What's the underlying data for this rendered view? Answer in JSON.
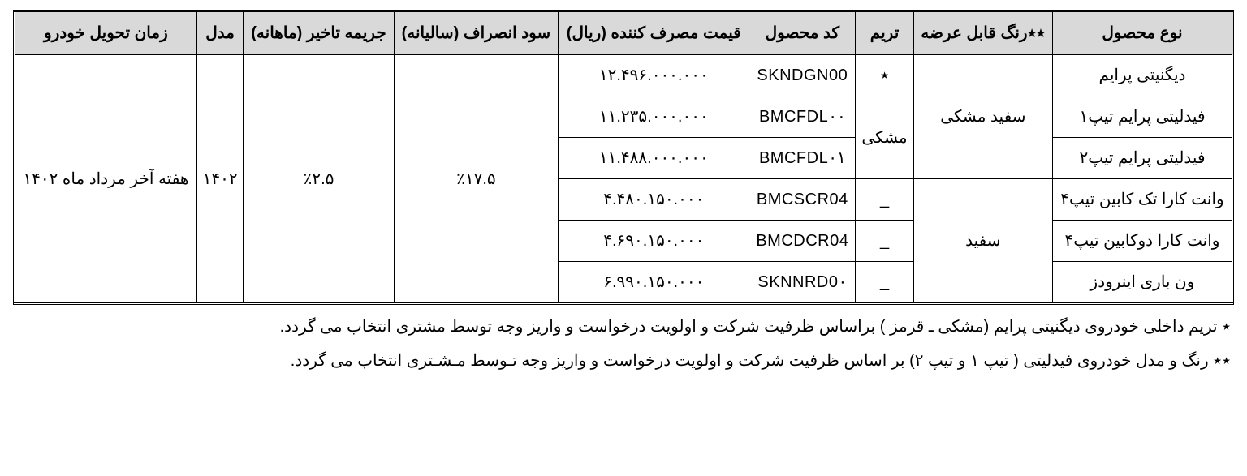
{
  "headers": {
    "product_type": "نوع محصول",
    "available_color": "٭٭رنگ قابل عرضه",
    "trim": "تریم",
    "product_code": "کد محصول",
    "consumer_price": "قیمت مصرف کننده (ریال)",
    "cancellation_interest": "سود انصراف (سالیانه)",
    "delay_penalty": "جریمه تاخیر (ماهانه)",
    "model": "مدل",
    "delivery_time": "زمان تحویل خودرو"
  },
  "shared": {
    "cancellation_interest": "٪۱۷.۵",
    "delay_penalty": "٪۲.۵",
    "model": "۱۴۰۲",
    "delivery_time": "هفته آخر مرداد ماه ۱۴۰۲"
  },
  "colors": {
    "white_black": "سفید مشکی",
    "white": "سفید"
  },
  "trims": {
    "star": "٭",
    "black": "مشکی",
    "dash": "_"
  },
  "rows": [
    {
      "product": "دیگنیتی پرایم",
      "code": "SKNDGN00",
      "price": "۱۲.۴۹۶.۰۰۰.۰۰۰"
    },
    {
      "product": "فیدلیتی پرایم تیپ۱",
      "code": "BMCFDL۰۰",
      "price": "۱۱.۲۳۵.۰۰۰.۰۰۰"
    },
    {
      "product": "فیدلیتی پرایم تیپ۲",
      "code": "BMCFDL۰۱",
      "price": "۱۱.۴۸۸.۰۰۰.۰۰۰"
    },
    {
      "product": "وانت کارا تک کابین تیپ۴",
      "code": "BMCSCR04",
      "price": "۴.۴۸۰.۱۵۰.۰۰۰"
    },
    {
      "product": "وانت کارا دوکابین تیپ۴",
      "code": "BMCDCR04",
      "price": "۴.۶۹۰.۱۵۰.۰۰۰"
    },
    {
      "product": "ون باری اینرودز",
      "code": "SKNNRD0۰",
      "price": "۶.۹۹۰.۱۵۰.۰۰۰"
    }
  ],
  "footnotes": {
    "f1": "٭ تریم داخلی خودروی دیگنیتی پرایم (مشکی ـ قرمز ) براساس ظرفیت شرکت و اولویت درخواست و واریز وجه توسط مشتری انتخاب می گردد.",
    "f2": "٭٭ رنگ و مدل خودروی فیدلیتی ( تیپ ۱ و تیپ ۲) بر اساس ظرفیت شرکت و اولویت درخواست و واریز وجه تـوسط مـشـتری انتخاب می گردد."
  }
}
